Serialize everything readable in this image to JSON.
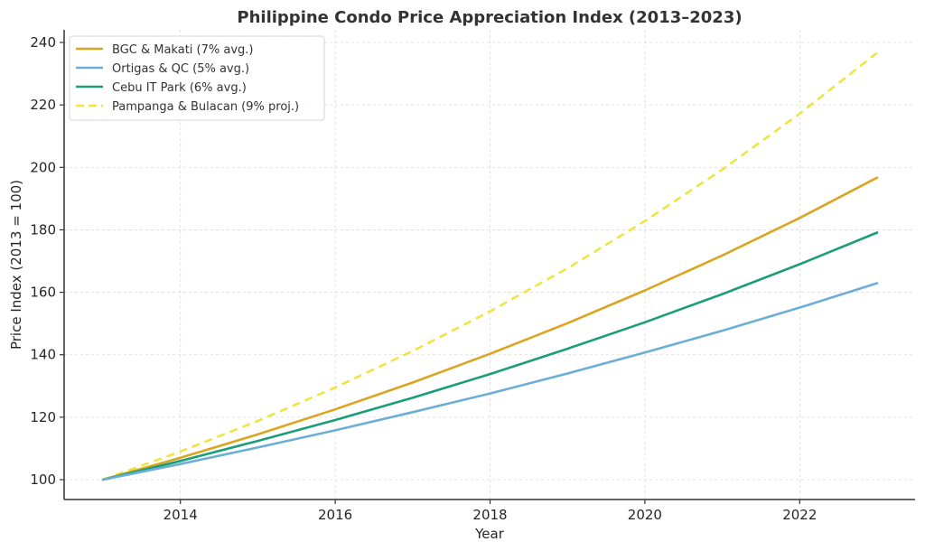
{
  "chart_data": {
    "type": "line",
    "title": "Philippine Condo Price Appreciation Index (2013–2023)",
    "xlabel": "Year",
    "ylabel": "Price Index (2013 = 100)",
    "xlim": [
      2012.5,
      2023.5
    ],
    "ylim": [
      94,
      244
    ],
    "xticks": [
      2014,
      2016,
      2018,
      2020,
      2022
    ],
    "yticks": [
      100,
      120,
      140,
      160,
      180,
      200,
      220,
      240
    ],
    "grid": true,
    "legend_position": "top-left",
    "x": [
      2013,
      2014,
      2015,
      2016,
      2017,
      2018,
      2019,
      2020,
      2021,
      2022,
      2023
    ],
    "series": [
      {
        "name": "BGC & Makati (7% avg.)",
        "color": "#DAA520",
        "style": "solid",
        "values": [
          100,
          107,
          114.5,
          122.5,
          131.1,
          140.3,
          150.1,
          160.6,
          171.8,
          183.8,
          196.7
        ]
      },
      {
        "name": "Ortigas & QC (5% avg.)",
        "color": "#6BAED6",
        "style": "solid",
        "values": [
          100,
          105,
          110.3,
          115.8,
          121.6,
          127.6,
          134.0,
          140.7,
          147.7,
          155.1,
          162.9
        ]
      },
      {
        "name": "Cebu IT Park (6% avg.)",
        "color": "#1B9E77",
        "style": "solid",
        "values": [
          100,
          106,
          112.4,
          119.1,
          126.2,
          133.8,
          141.9,
          150.4,
          159.4,
          169.0,
          179.1
        ]
      },
      {
        "name": "Pampanga & Bulacan (9% proj.)",
        "color": "#F0E442",
        "style": "dashed",
        "values": [
          100,
          109,
          118.8,
          129.5,
          141.2,
          153.9,
          167.7,
          182.8,
          199.3,
          217.2,
          236.7
        ]
      }
    ]
  }
}
